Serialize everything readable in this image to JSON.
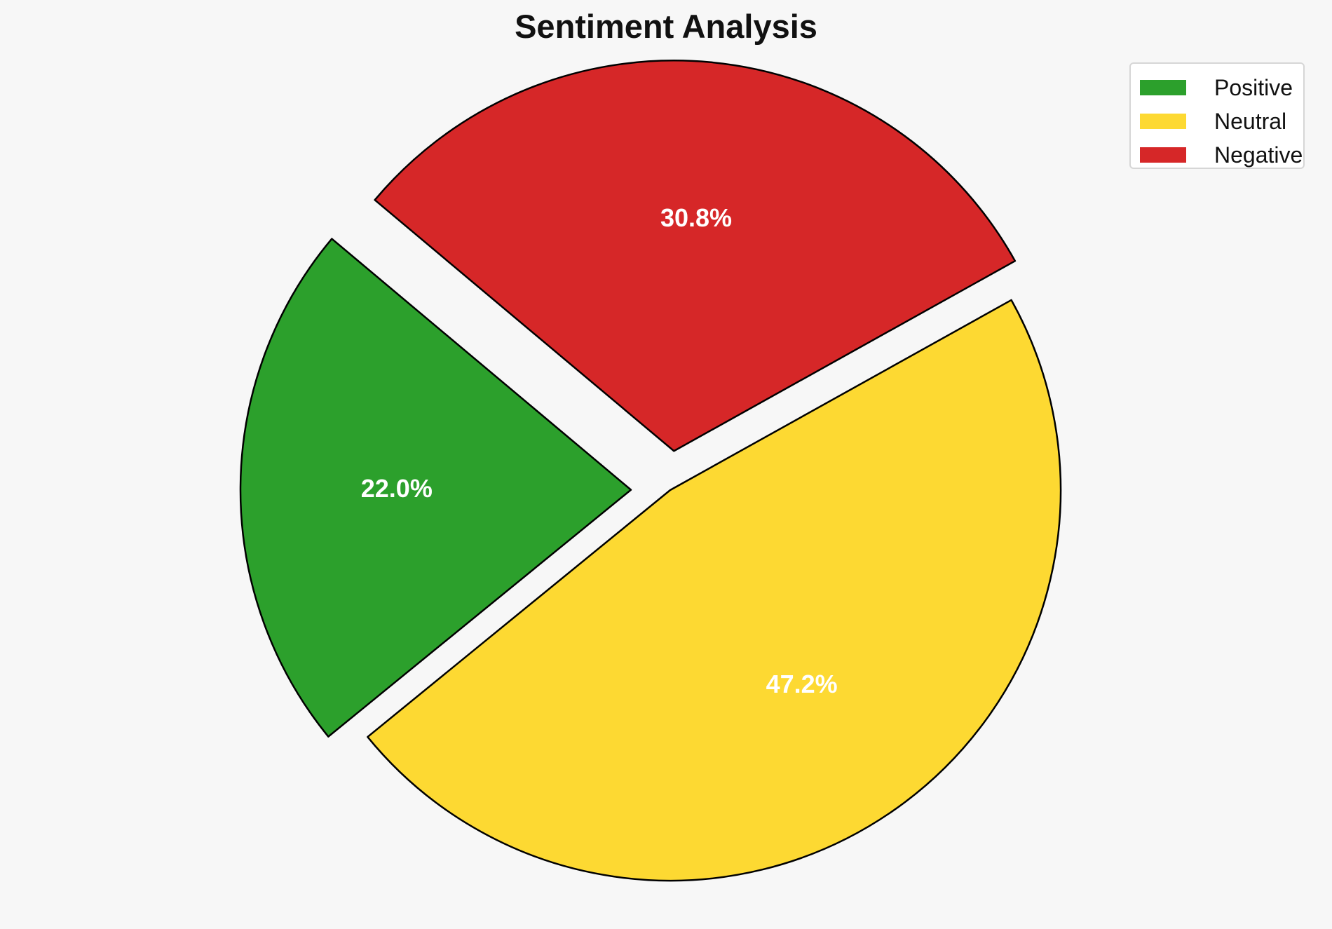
{
  "chart_data": {
    "type": "pie",
    "title": "Sentiment Analysis",
    "slices": [
      {
        "name": "Positive",
        "value": 22.0,
        "label": "22.0%",
        "color": "#2ca02c",
        "exploded": true
      },
      {
        "name": "Neutral",
        "value": 47.2,
        "label": "47.2%",
        "color": "#fdd932",
        "exploded": false
      },
      {
        "name": "Negative",
        "value": 30.8,
        "label": "30.8%",
        "color": "#d62728",
        "exploded": true
      }
    ],
    "legend": {
      "position": "top-right",
      "entries": [
        "Positive",
        "Neutral",
        "Negative"
      ]
    },
    "label_color": "#ffffff",
    "edge_color": "#000000"
  }
}
